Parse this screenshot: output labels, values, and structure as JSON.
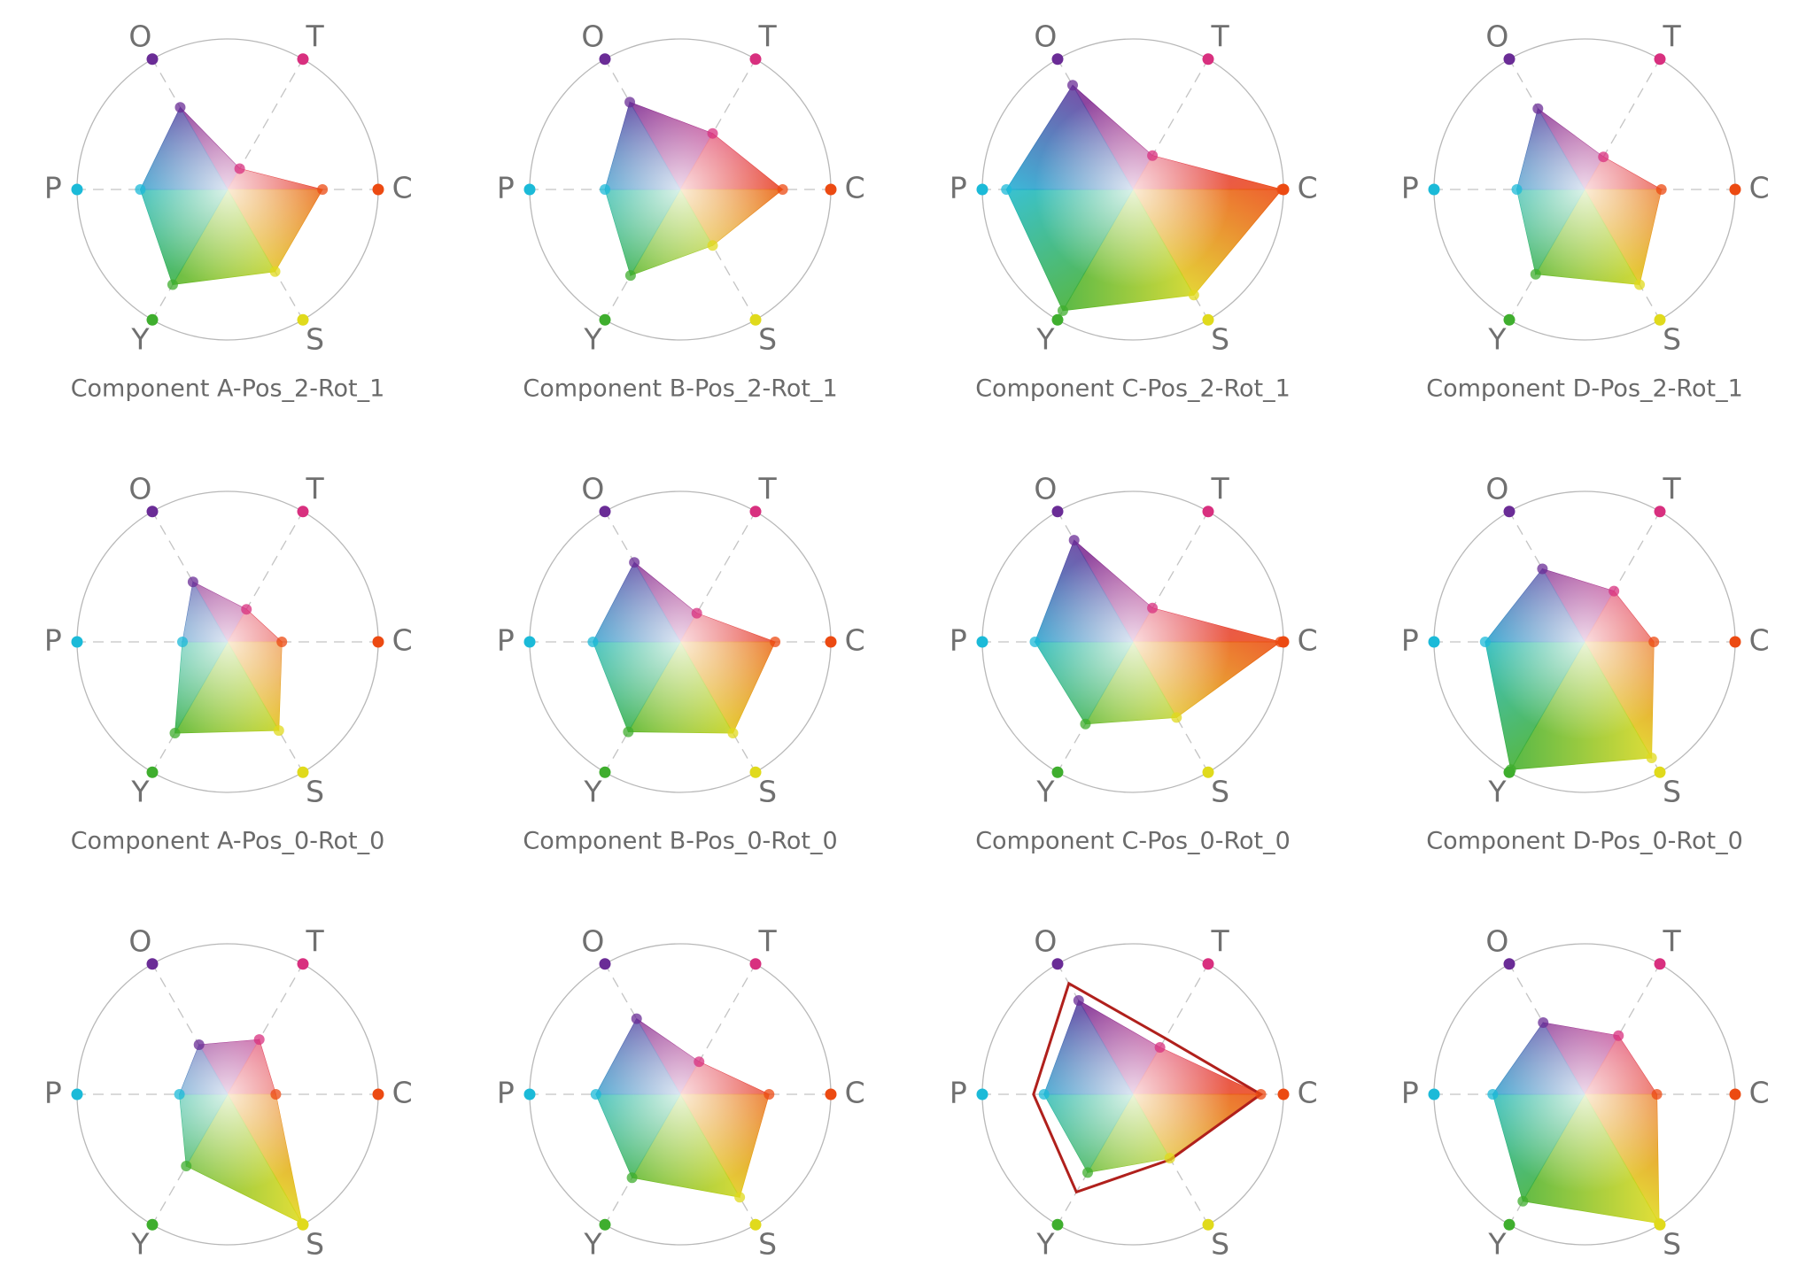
{
  "chart_data": [
    {
      "type": "radar",
      "title": "Component A-Pos_2-Rot_1",
      "axes": [
        "O",
        "T",
        "C",
        "S",
        "Y",
        "P"
      ],
      "colors": [
        "#6a2c96",
        "#d8307f",
        "#ec4a12",
        "#e0da1c",
        "#3fae2e",
        "#1bbad8"
      ],
      "rlim": [
        0,
        1
      ],
      "values": [
        0.63,
        0.16,
        0.63,
        0.63,
        0.73,
        0.58
      ]
    },
    {
      "type": "radar",
      "title": "Component B-Pos_2-Rot_1",
      "axes": [
        "O",
        "T",
        "C",
        "S",
        "Y",
        "P"
      ],
      "colors": [
        "#6a2c96",
        "#d8307f",
        "#ec4a12",
        "#e0da1c",
        "#3fae2e",
        "#1bbad8"
      ],
      "rlim": [
        0,
        1
      ],
      "values": [
        0.67,
        0.43,
        0.68,
        0.43,
        0.66,
        0.5
      ]
    },
    {
      "type": "radar",
      "title": "Component C-Pos_2-Rot_1",
      "axes": [
        "O",
        "T",
        "C",
        "S",
        "Y",
        "P"
      ],
      "colors": [
        "#6a2c96",
        "#d8307f",
        "#ec4a12",
        "#e0da1c",
        "#3fae2e",
        "#1bbad8"
      ],
      "rlim": [
        0,
        1
      ],
      "values": [
        0.8,
        0.26,
        0.99,
        0.81,
        0.93,
        0.84
      ]
    },
    {
      "type": "radar",
      "title": "Component D-Pos_2-Rot_1",
      "axes": [
        "O",
        "T",
        "C",
        "S",
        "Y",
        "P"
      ],
      "colors": [
        "#6a2c96",
        "#d8307f",
        "#ec4a12",
        "#e0da1c",
        "#3fae2e",
        "#1bbad8"
      ],
      "rlim": [
        0,
        1
      ],
      "values": [
        0.62,
        0.25,
        0.51,
        0.73,
        0.65,
        0.45
      ]
    },
    {
      "type": "radar",
      "title": "Component A-Pos_0-Rot_0",
      "axes": [
        "O",
        "T",
        "C",
        "S",
        "Y",
        "P"
      ],
      "colors": [
        "#6a2c96",
        "#d8307f",
        "#ec4a12",
        "#e0da1c",
        "#3fae2e",
        "#1bbad8"
      ],
      "rlim": [
        0,
        1
      ],
      "values": [
        0.46,
        0.25,
        0.36,
        0.68,
        0.7,
        0.3
      ]
    },
    {
      "type": "radar",
      "title": "Component B-Pos_0-Rot_0",
      "axes": [
        "O",
        "T",
        "C",
        "S",
        "Y",
        "P"
      ],
      "colors": [
        "#6a2c96",
        "#d8307f",
        "#ec4a12",
        "#e0da1c",
        "#3fae2e",
        "#1bbad8"
      ],
      "rlim": [
        0,
        1
      ],
      "values": [
        0.61,
        0.22,
        0.63,
        0.7,
        0.69,
        0.58
      ]
    },
    {
      "type": "radar",
      "title": "Component C-Pos_0-Rot_0",
      "axes": [
        "O",
        "T",
        "C",
        "S",
        "Y",
        "P"
      ],
      "colors": [
        "#6a2c96",
        "#d8307f",
        "#ec4a12",
        "#e0da1c",
        "#3fae2e",
        "#1bbad8"
      ],
      "rlim": [
        0,
        1
      ],
      "values": [
        0.78,
        0.26,
        0.98,
        0.58,
        0.63,
        0.65
      ]
    },
    {
      "type": "radar",
      "title": "Component D-Pos_0-Rot_0",
      "axes": [
        "O",
        "T",
        "C",
        "S",
        "Y",
        "P"
      ],
      "colors": [
        "#6a2c96",
        "#d8307f",
        "#ec4a12",
        "#e0da1c",
        "#3fae2e",
        "#1bbad8"
      ],
      "rlim": [
        0,
        1
      ],
      "values": [
        0.56,
        0.39,
        0.46,
        0.89,
        0.98,
        0.66
      ]
    },
    {
      "type": "radar",
      "axes": [
        "O",
        "T",
        "C",
        "S",
        "Y",
        "P"
      ],
      "colors": [
        "#6a2c96",
        "#d8307f",
        "#ec4a12",
        "#e0da1c",
        "#3fae2e",
        "#1bbad8"
      ],
      "rlim": [
        0,
        1
      ],
      "values": [
        0.38,
        0.42,
        0.32,
        0.99,
        0.55,
        0.32
      ]
    },
    {
      "type": "radar",
      "axes": [
        "O",
        "T",
        "C",
        "S",
        "Y",
        "P"
      ],
      "colors": [
        "#6a2c96",
        "#d8307f",
        "#ec4a12",
        "#e0da1c",
        "#3fae2e",
        "#1bbad8"
      ],
      "rlim": [
        0,
        1
      ],
      "values": [
        0.58,
        0.25,
        0.59,
        0.79,
        0.64,
        0.56
      ]
    },
    {
      "type": "radar",
      "axes": [
        "O",
        "T",
        "C",
        "S",
        "Y",
        "P"
      ],
      "colors": [
        "#6a2c96",
        "#d8307f",
        "#ec4a12",
        "#e0da1c",
        "#3fae2e",
        "#1bbad8"
      ],
      "rlim": [
        0,
        1
      ],
      "values": [
        0.72,
        0.36,
        0.85,
        0.49,
        0.6,
        0.59
      ],
      "outline": {
        "color": "#b0201c",
        "values": [
          0.85,
          0.43,
          0.85,
          0.5,
          0.75,
          0.66
        ]
      }
    },
    {
      "type": "radar",
      "axes": [
        "O",
        "T",
        "C",
        "S",
        "Y",
        "P"
      ],
      "colors": [
        "#6a2c96",
        "#d8307f",
        "#ec4a12",
        "#e0da1c",
        "#3fae2e",
        "#1bbad8"
      ],
      "rlim": [
        0,
        1
      ],
      "values": [
        0.55,
        0.45,
        0.48,
        0.99,
        0.82,
        0.61
      ]
    }
  ]
}
